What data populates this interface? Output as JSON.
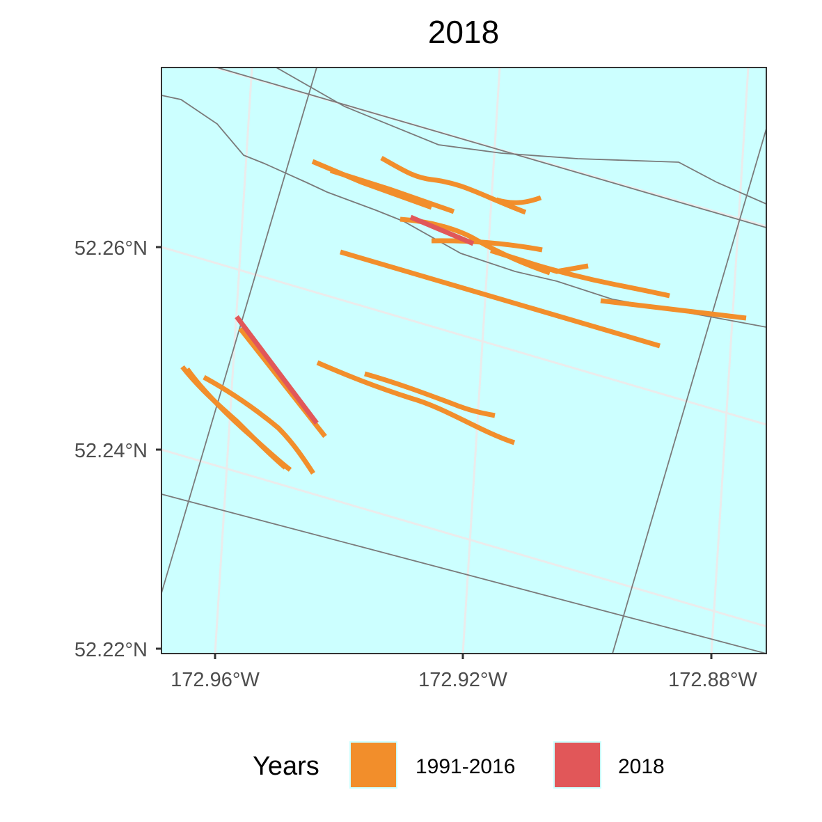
{
  "title": "2018",
  "colors": {
    "background": "#ccffff",
    "gridline": "#ebebeb",
    "panel_border": "#333333",
    "land_lines": "#7a7a7a",
    "period_1991_2016": "#f28e2b",
    "period_2018": "#e15759"
  },
  "axes": {
    "y_ticks": [
      "52.26°N",
      "52.24°N",
      "52.22°N"
    ],
    "x_ticks": [
      "172.96°W",
      "172.92°W",
      "172.88°W"
    ]
  },
  "legend": {
    "title": "Years",
    "items": [
      {
        "label": "1991-2016",
        "color": "#f28e2b"
      },
      {
        "label": "2018",
        "color": "#e15759"
      }
    ]
  }
}
